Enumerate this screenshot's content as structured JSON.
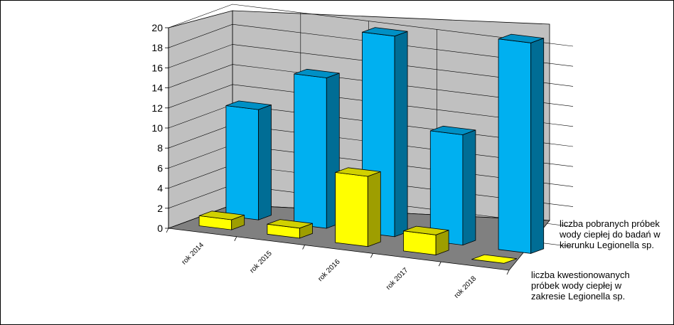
{
  "chart_data": {
    "type": "bar",
    "title": "",
    "xlabel": "",
    "ylabel": "",
    "categories": [
      "rok 2014",
      "rok 2015",
      "rok 2016",
      "rok 2017",
      "rok 2018"
    ],
    "series": [
      {
        "name": "liczba pobranych próbek wody ciepłej do badań w kierunku Legionella sp.",
        "values": [
          11,
          15,
          20,
          11,
          21
        ],
        "color": "#00B0F0"
      },
      {
        "name": "liczba kwestionowanych próbek wody ciepłej w zakresie Legionella sp.",
        "values": [
          1,
          1,
          7,
          2,
          0
        ],
        "color": "#FFFF00"
      }
    ],
    "y_ticks": [
      "0",
      "2",
      "4",
      "6",
      "8",
      "10",
      "12",
      "14",
      "16",
      "18",
      "20"
    ],
    "ylim": [
      0,
      20
    ],
    "grid": true,
    "legend_position": "right",
    "style": "3d-column",
    "wall_color": "#C0C0C0",
    "floor_color": "#808080"
  }
}
